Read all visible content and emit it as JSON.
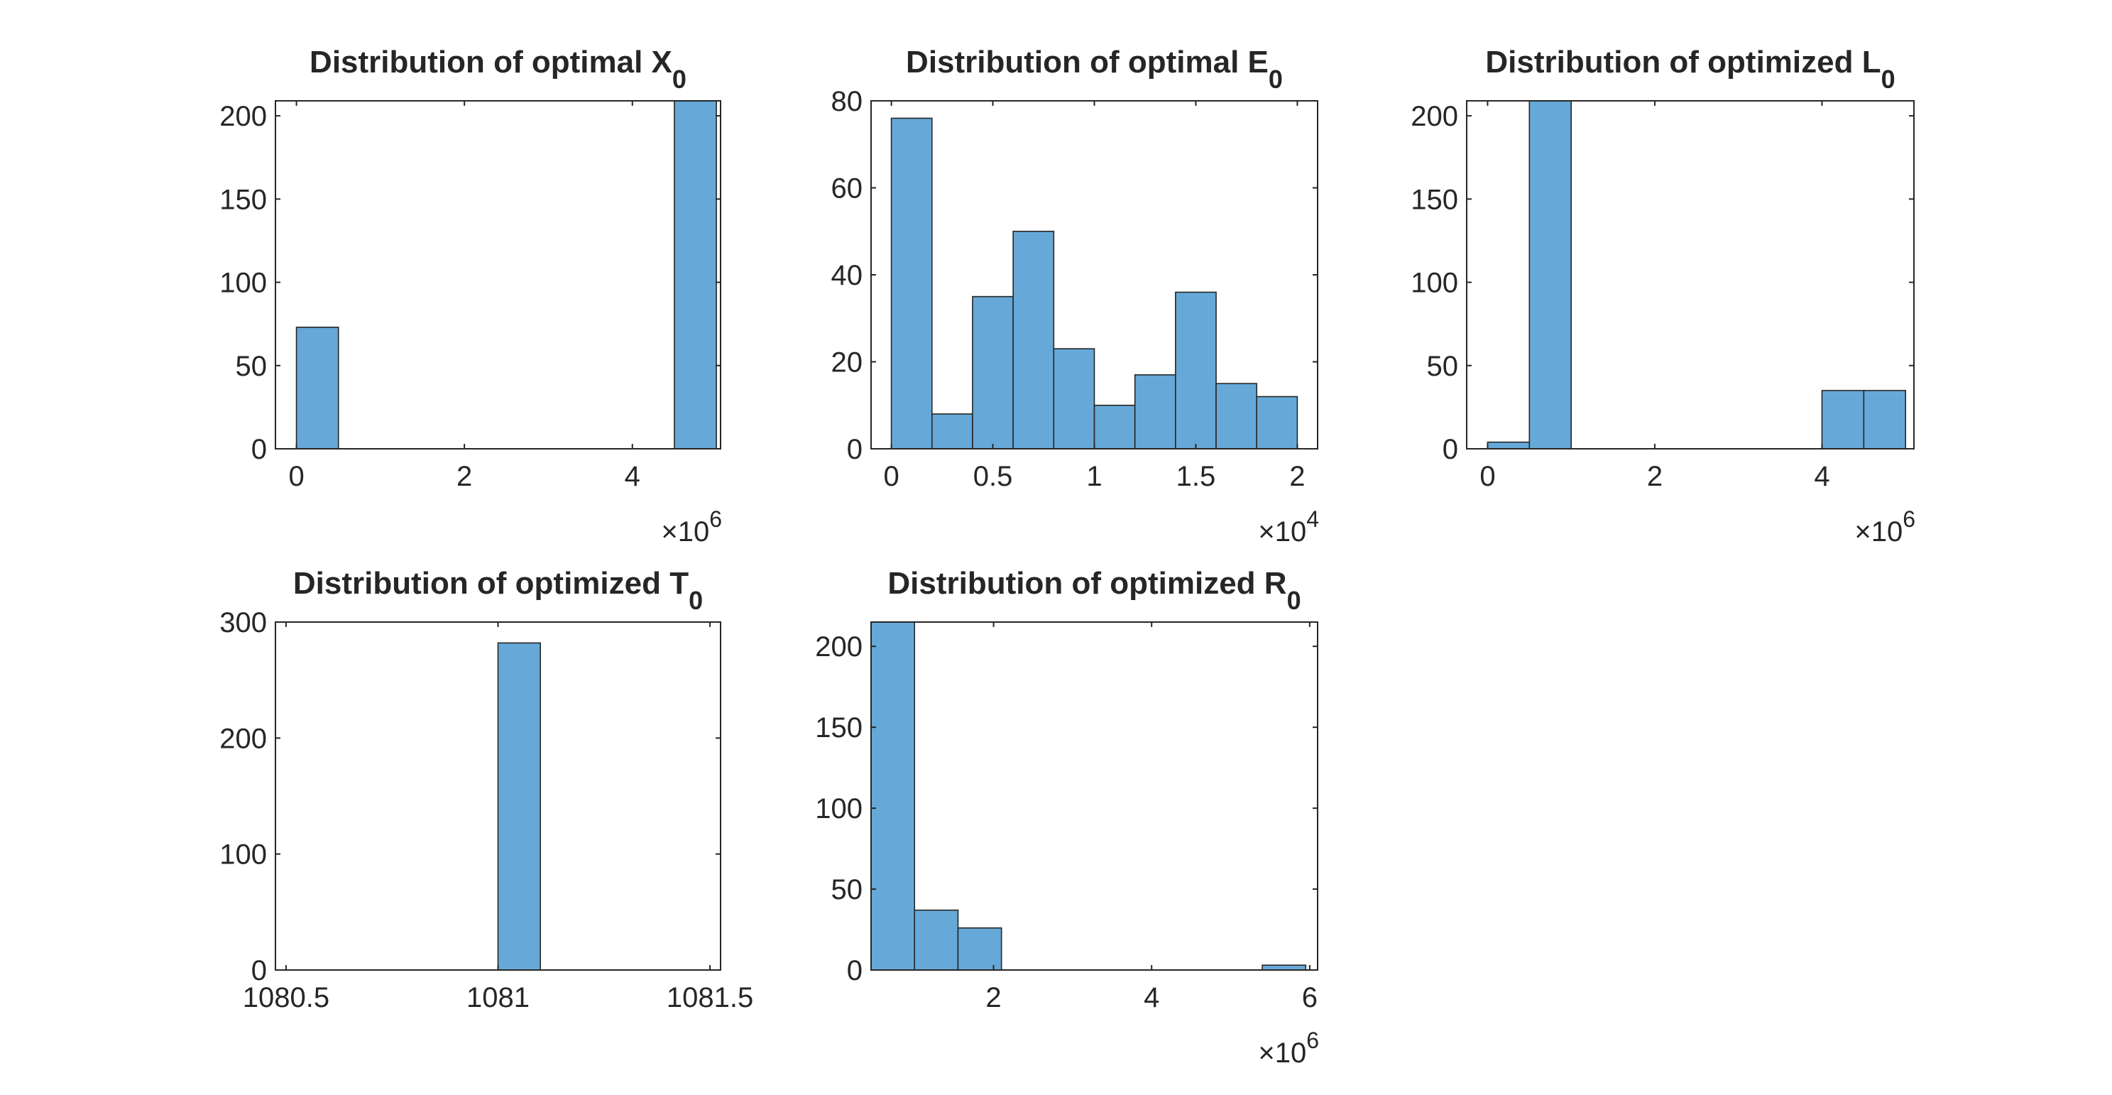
{
  "chart_data": [
    {
      "type": "bar",
      "title": "Distribution of optimal X",
      "title_subscript": "0",
      "xlim": [
        -0.25,
        5.05
      ],
      "ylim": [
        0,
        209
      ],
      "xticks": [
        0,
        2,
        4
      ],
      "xtick_labels": [
        "0",
        "2",
        "4"
      ],
      "yticks": [
        0,
        50,
        100,
        150,
        200
      ],
      "ytick_labels": [
        "0",
        "50",
        "100",
        "150",
        "200"
      ],
      "x_exponent_base": "×10",
      "x_exponent_power": "6",
      "bin_edges": [
        0,
        0.5,
        1.0,
        1.5,
        2.0,
        2.5,
        3.0,
        3.5,
        4.0,
        4.5,
        5.0
      ],
      "values": [
        73,
        0,
        0,
        0,
        0,
        0,
        0,
        0,
        0,
        209
      ]
    },
    {
      "type": "bar",
      "title": "Distribution of optimal E",
      "title_subscript": "0",
      "xlim": [
        -0.1,
        2.1
      ],
      "ylim": [
        0,
        80
      ],
      "xticks": [
        0,
        0.5,
        1,
        1.5,
        2
      ],
      "xtick_labels": [
        "0",
        "0.5",
        "1",
        "1.5",
        "2"
      ],
      "yticks": [
        0,
        20,
        40,
        60,
        80
      ],
      "ytick_labels": [
        "0",
        "20",
        "40",
        "60",
        "80"
      ],
      "x_exponent_base": "×10",
      "x_exponent_power": "4",
      "bin_edges": [
        0,
        0.2,
        0.4,
        0.6,
        0.8,
        1.0,
        1.2,
        1.4,
        1.6,
        1.8,
        2.0
      ],
      "values": [
        76,
        8,
        35,
        50,
        23,
        10,
        17,
        36,
        15,
        12
      ]
    },
    {
      "type": "bar",
      "title": "Distribution of optimized L",
      "title_subscript": "0",
      "xlim": [
        -0.25,
        5.1
      ],
      "ylim": [
        0,
        209
      ],
      "xticks": [
        0,
        2,
        4
      ],
      "xtick_labels": [
        "0",
        "2",
        "4"
      ],
      "yticks": [
        0,
        50,
        100,
        150,
        200
      ],
      "ytick_labels": [
        "0",
        "50",
        "100",
        "150",
        "200"
      ],
      "x_exponent_base": "×10",
      "x_exponent_power": "6",
      "bin_edges": [
        0,
        0.5,
        1.0,
        1.5,
        2.0,
        2.5,
        3.0,
        3.5,
        4.0,
        4.5,
        5.0
      ],
      "values": [
        4,
        209,
        0,
        0,
        0,
        0,
        0,
        0,
        35,
        35
      ]
    },
    {
      "type": "bar",
      "title": "Distribution of optimized T",
      "title_subscript": "0",
      "xlim": [
        1080.475,
        1081.525
      ],
      "ylim": [
        0,
        300
      ],
      "xticks": [
        1080.5,
        1081,
        1081.5
      ],
      "xtick_labels": [
        "1080.5",
        "1081",
        "1081.5"
      ],
      "yticks": [
        0,
        100,
        200,
        300
      ],
      "ytick_labels": [
        "0",
        "100",
        "200",
        "300"
      ],
      "x_exponent_base": "",
      "x_exponent_power": "",
      "bin_edges": [
        1081,
        1081.1
      ],
      "values": [
        282
      ]
    },
    {
      "type": "bar",
      "title": "Distribution of optimized R",
      "title_subscript": "0",
      "xlim": [
        0.45,
        6.1
      ],
      "ylim": [
        0,
        215
      ],
      "xticks": [
        2,
        4,
        6
      ],
      "xtick_labels": [
        "2",
        "4",
        "6"
      ],
      "yticks": [
        0,
        50,
        100,
        150,
        200
      ],
      "ytick_labels": [
        "0",
        "50",
        "100",
        "150",
        "200"
      ],
      "x_exponent_base": "×10",
      "x_exponent_power": "6",
      "bin_edges": [
        0.45,
        1.0,
        1.55,
        2.1,
        2.65,
        3.2,
        3.75,
        4.3,
        4.85,
        5.4,
        5.95
      ],
      "values": [
        215,
        37,
        26,
        0,
        0,
        0,
        0,
        0,
        0,
        3
      ]
    }
  ],
  "colors": {
    "bar_fill": "#66A9D8",
    "bar_edge": "#262626",
    "axis": "#262626",
    "text": "#262626"
  }
}
